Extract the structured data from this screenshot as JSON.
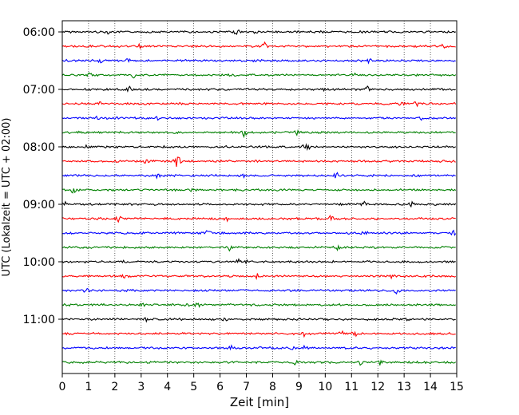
{
  "chart_data": {
    "type": "line",
    "subtype": "helicorder",
    "xlabel": "Zeit  [min]",
    "ylabel": "UTC (Lokalzeit = UTC + 02:00)",
    "xlim": [
      0,
      15
    ],
    "x_ticks": [
      "0",
      "1",
      "2",
      "3",
      "4",
      "5",
      "6",
      "7",
      "8",
      "9",
      "10",
      "11",
      "12",
      "13",
      "14",
      "15"
    ],
    "y_ticks": [
      "06:00",
      "07:00",
      "08:00",
      "09:00",
      "10:00",
      "11:00"
    ],
    "trace_start_times": [
      "06:00",
      "06:15",
      "06:30",
      "06:45",
      "07:00",
      "07:15",
      "07:30",
      "07:45",
      "08:00",
      "08:15",
      "08:30",
      "08:45",
      "09:00",
      "09:15",
      "09:30",
      "09:45",
      "10:00",
      "10:15",
      "10:30",
      "10:45",
      "11:00",
      "11:15",
      "11:30",
      "11:45"
    ],
    "color_cycle": [
      "#000000",
      "#ff0000",
      "#0000ff",
      "#008000"
    ],
    "grid": "vertical dotted at each minute",
    "legend": "none"
  }
}
